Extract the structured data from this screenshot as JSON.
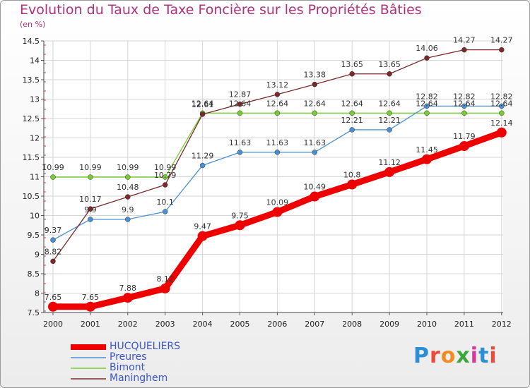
{
  "title": "Evolution du Taux de Taxe Foncière sur les Propriétés Bâties",
  "unit_label": "(en %)",
  "brand": {
    "text": "Proxiti",
    "colors": [
      "#2b8fd6",
      "#e84c3d",
      "#f28c1e",
      "#3aa83a",
      "#d6389a",
      "#2b8fd6",
      "#e84c3d"
    ]
  },
  "chart_data": {
    "type": "line",
    "title": "Evolution du Taux de Taxe Foncière sur les Propriétés Bâties",
    "ylabel": "(en %)",
    "x": [
      "2000",
      "2001",
      "2002",
      "2003",
      "2004",
      "2005",
      "2006",
      "2007",
      "2008",
      "2009",
      "2010",
      "2011",
      "2012"
    ],
    "ylim": [
      7.5,
      14.5
    ],
    "yticks": [
      "7.5",
      "8",
      "8.5",
      "9",
      "9.5",
      "10",
      "10.5",
      "11",
      "11.5",
      "12",
      "12.5",
      "13",
      "13.5",
      "14",
      "14.5"
    ],
    "grid": true,
    "legend_position": "bottom-left",
    "series": [
      {
        "name": "HUCQUELIERS",
        "color": "#ee0000",
        "values": [
          7.65,
          7.65,
          7.88,
          8.12,
          9.47,
          9.75,
          10.09,
          10.49,
          10.8,
          11.12,
          11.45,
          11.79,
          12.14
        ],
        "labels": [
          "7.65",
          "7.65",
          "7.88",
          "8.12",
          "9.47",
          "9.75",
          "10.09",
          "10.49",
          "10.8",
          "11.12",
          "11.45",
          "11.79",
          "12.14"
        ]
      },
      {
        "name": "Preures",
        "color": "#4a90d0",
        "values": [
          9.37,
          9.9,
          9.9,
          10.1,
          11.29,
          11.63,
          11.63,
          11.63,
          12.21,
          12.21,
          12.82,
          12.82,
          12.82
        ],
        "labels": [
          "9.37",
          "9.9",
          "9.9",
          "10.1",
          "11.29",
          "11.63",
          "11.63",
          "11.63",
          "12.21",
          "12.21",
          "12.82",
          "12.82",
          "12.82"
        ]
      },
      {
        "name": "Bimont",
        "color": "#77cc33",
        "values": [
          10.99,
          10.99,
          10.99,
          10.99,
          12.64,
          12.64,
          12.64,
          12.64,
          12.64,
          12.64,
          12.64,
          12.64,
          12.64
        ],
        "labels": [
          "10.99",
          "10.99",
          "10.99",
          "10.99",
          "12.64",
          "12.64",
          "12.64",
          "12.64",
          "12.64",
          "12.64",
          "12.64",
          "12.64",
          "12.64"
        ]
      },
      {
        "name": "Maninghem",
        "color": "#7a2a2a",
        "values": [
          8.82,
          10.17,
          10.48,
          10.79,
          12.61,
          12.87,
          13.12,
          13.38,
          13.65,
          13.65,
          14.06,
          14.27,
          14.27
        ],
        "labels": [
          "8.82",
          "10.17",
          "10.48",
          "10.79",
          "12.61",
          "12.87",
          "13.12",
          "13.38",
          "13.65",
          "13.65",
          "14.06",
          "14.27",
          "14.27"
        ]
      }
    ]
  }
}
